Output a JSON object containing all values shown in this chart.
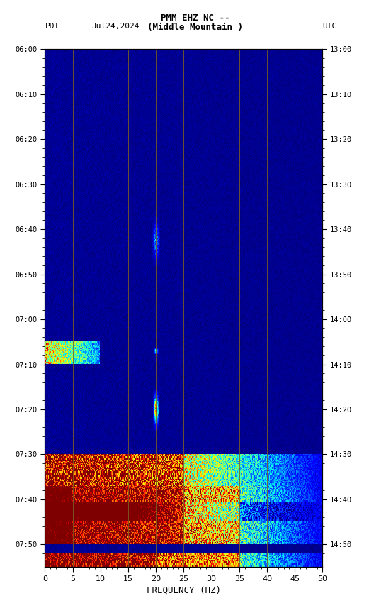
{
  "title_line1": "PMM EHZ NC --",
  "title_line2": "(Middle Mountain )",
  "left_label": "PDT",
  "date_label": "Jul24,2024",
  "right_label": "UTC",
  "xlabel": "FREQUENCY (HZ)",
  "freq_min": 0,
  "freq_max": 50,
  "pdt_ticks": [
    "06:00",
    "06:10",
    "06:20",
    "06:30",
    "06:40",
    "06:50",
    "07:00",
    "07:10",
    "07:20",
    "07:30",
    "07:40",
    "07:50"
  ],
  "utc_ticks": [
    "13:00",
    "13:10",
    "13:20",
    "13:30",
    "13:40",
    "13:50",
    "14:00",
    "14:10",
    "14:20",
    "14:30",
    "14:40",
    "14:50"
  ],
  "background_color": "#000080",
  "fig_bg": "#ffffff",
  "vertical_lines_freq": [
    5,
    10,
    15,
    20,
    25,
    30,
    35,
    40,
    45
  ],
  "vertical_line_color": "#7B6020",
  "total_minutes": 115.0,
  "event_cyan_band_min": 65,
  "event_cyan_band_max": 70,
  "event_blob1_min": 37,
  "event_blob1_max": 48,
  "event_blob1_freq": 20,
  "event_blob2_min": 75,
  "event_blob2_max": 85,
  "event_blob2_freq": 20,
  "noise_band1_min": 90,
  "noise_band1_max": 97,
  "noise_band2_min": 97,
  "noise_band2_max": 110,
  "noise_band3_min": 112,
  "noise_band3_max": 115
}
